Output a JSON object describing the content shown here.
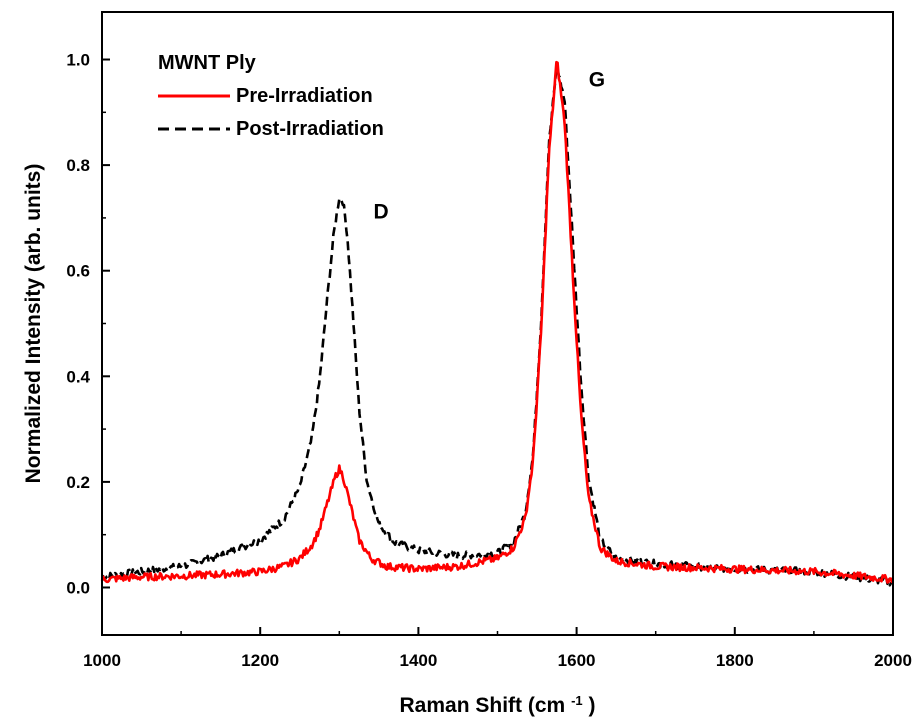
{
  "chart_data": {
    "type": "line",
    "xlabel": "Raman Shift (cm",
    "xlabel_sup": "-1",
    "xlabel_tail": ")",
    "ylabel": "Normalized Intensity (arb. units)",
    "xlim": [
      1000,
      2000
    ],
    "ylim": [
      -0.09,
      1.09
    ],
    "xticks": [
      1000,
      1200,
      1400,
      1600,
      1800,
      2000
    ],
    "yticks": [
      0.0,
      0.2,
      0.4,
      0.6,
      0.8,
      1.0
    ],
    "ytick_labels": [
      "0.0",
      "0.2",
      "0.4",
      "0.6",
      "0.8",
      "1.0"
    ],
    "grid": false,
    "legend_title": "MWNT Ply",
    "legend_position": "top-left",
    "annotations": [
      {
        "text": "D",
        "x": 1318,
        "y": 0.71
      },
      {
        "text": "G",
        "x": 1590,
        "y": 0.96
      }
    ],
    "series": [
      {
        "name": "Pre-Irradiation",
        "color": "#ff0000",
        "style": "solid",
        "x": [
          1000,
          1050,
          1100,
          1150,
          1200,
          1230,
          1250,
          1265,
          1275,
          1285,
          1295,
          1300,
          1305,
          1315,
          1325,
          1340,
          1360,
          1400,
          1450,
          1500,
          1520,
          1535,
          1545,
          1555,
          1565,
          1575,
          1585,
          1595,
          1605,
          1615,
          1630,
          1650,
          1700,
          1800,
          1900,
          2000
        ],
        "y": [
          0.015,
          0.02,
          0.022,
          0.025,
          0.03,
          0.04,
          0.055,
          0.08,
          0.11,
          0.16,
          0.21,
          0.225,
          0.21,
          0.15,
          0.09,
          0.055,
          0.04,
          0.035,
          0.04,
          0.055,
          0.075,
          0.13,
          0.24,
          0.48,
          0.82,
          1.0,
          0.88,
          0.6,
          0.34,
          0.17,
          0.075,
          0.05,
          0.04,
          0.035,
          0.03,
          0.015
        ]
      },
      {
        "name": "Post-Irradiation",
        "color": "#000000",
        "style": "dashed",
        "x": [
          1000,
          1050,
          1100,
          1150,
          1200,
          1230,
          1250,
          1265,
          1275,
          1285,
          1293,
          1300,
          1305,
          1310,
          1318,
          1325,
          1335,
          1350,
          1370,
          1400,
          1450,
          1500,
          1520,
          1535,
          1545,
          1555,
          1565,
          1575,
          1585,
          1595,
          1605,
          1615,
          1630,
          1650,
          1700,
          1800,
          1900,
          2000
        ],
        "y": [
          0.02,
          0.03,
          0.04,
          0.06,
          0.09,
          0.13,
          0.19,
          0.28,
          0.39,
          0.55,
          0.67,
          0.74,
          0.73,
          0.67,
          0.5,
          0.34,
          0.2,
          0.12,
          0.085,
          0.07,
          0.06,
          0.065,
          0.085,
          0.14,
          0.25,
          0.5,
          0.84,
          0.99,
          0.92,
          0.66,
          0.4,
          0.21,
          0.09,
          0.055,
          0.045,
          0.035,
          0.03,
          0.01
        ]
      }
    ]
  }
}
